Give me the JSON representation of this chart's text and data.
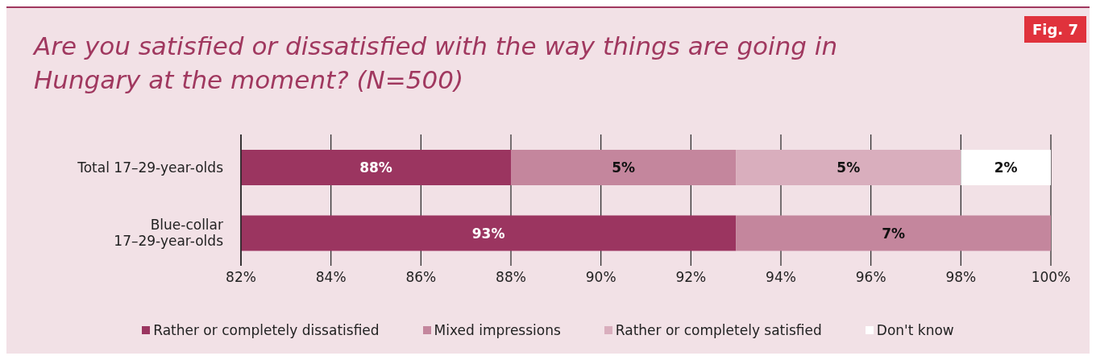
{
  "chart_data": {
    "type": "bar",
    "orientation": "horizontal",
    "stacked": true,
    "title": "Are you satisfied or dissatisfied with the way things are going in Hungary at the moment? (N=500)",
    "annotations": [
      "Fig. 7"
    ],
    "categories": [
      "Total 17–29-year-olds",
      "Blue-collar 17–29-year-olds"
    ],
    "series": [
      {
        "name": "Rather or completely dissatisfied",
        "color": "#9b3560",
        "values": [
          88,
          93
        ],
        "value_labels": [
          "88%",
          "93%"
        ]
      },
      {
        "name": "Mixed impressions",
        "color": "#c4869d",
        "base": [
          88,
          93
        ],
        "values": [
          5,
          7
        ],
        "value_labels": [
          "5%",
          "7%"
        ]
      },
      {
        "name": "Rather or completely satisfied",
        "color": "#d9aebd",
        "base": [
          93,
          null
        ],
        "values": [
          5,
          null
        ],
        "value_labels": [
          "5%",
          null
        ]
      },
      {
        "name": "Don't know",
        "color": "#ffffff",
        "base": [
          98,
          null
        ],
        "values": [
          2,
          null
        ],
        "value_labels": [
          "2%",
          null
        ]
      }
    ],
    "xlim": [
      82,
      100
    ],
    "xticks": [
      {
        "value": 82,
        "label": "82%"
      },
      {
        "value": 84,
        "label": "84%"
      },
      {
        "value": 86,
        "label": "86%"
      },
      {
        "value": 88,
        "label": "88%"
      },
      {
        "value": 90,
        "label": "90%"
      },
      {
        "value": 92,
        "label": "92%"
      },
      {
        "value": 94,
        "label": "94%"
      },
      {
        "value": 96,
        "label": "96%"
      },
      {
        "value": 98,
        "label": "98%"
      },
      {
        "value": 100,
        "label": "100%"
      }
    ],
    "grid": "x",
    "legend": "bottom"
  }
}
